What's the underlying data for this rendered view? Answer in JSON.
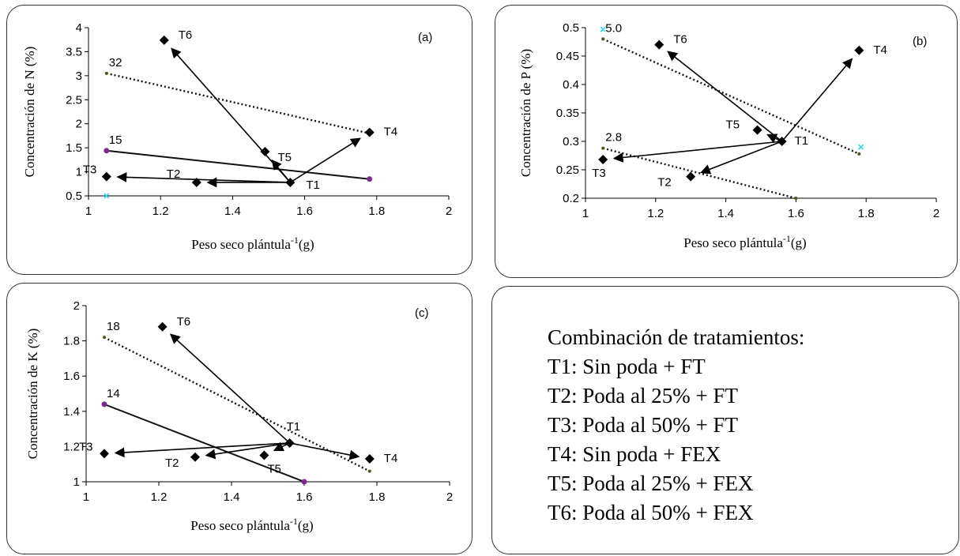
{
  "chart_data": [
    {
      "type": "scatter",
      "panel_tag": "(a)",
      "xlabel": "Peso  seco plántula",
      "xlabel_sup": "-1",
      "xlabel_unit": "(g)",
      "ylabel": "Concentración de N (%)",
      "xlim": [
        1,
        2
      ],
      "ylim": [
        0.5,
        4
      ],
      "xticks": [
        1,
        1.2,
        1.4,
        1.6,
        1.8,
        2
      ],
      "xtick_labels": [
        "1",
        "1.2",
        "1.4",
        "1.6",
        "1.8",
        "2"
      ],
      "yticks": [
        0.5,
        1,
        1.5,
        2,
        2.5,
        3,
        3.5,
        4
      ],
      "ytick_labels": [
        "0.5",
        "1",
        "1.5",
        "2",
        "2.5",
        "3",
        "3.5",
        "4"
      ],
      "points": [
        {
          "label": "T1",
          "x": 1.56,
          "y": 0.78
        },
        {
          "label": "T2",
          "x": 1.3,
          "y": 0.78
        },
        {
          "label": "T3",
          "x": 1.05,
          "y": 0.9
        },
        {
          "label": "T4",
          "x": 1.78,
          "y": 1.82
        },
        {
          "label": "T5",
          "x": 1.49,
          "y": 1.42
        },
        {
          "label": "T6",
          "x": 1.21,
          "y": 3.74
        }
      ],
      "arrows": [
        {
          "from": "T1",
          "to": "T2"
        },
        {
          "from": "T1",
          "to": "T3"
        },
        {
          "from": "T1",
          "to": "T4"
        },
        {
          "from": "T1",
          "to": "T5"
        },
        {
          "from": "T1",
          "to": "T6"
        }
      ],
      "isolines": [
        {
          "label": "32",
          "style": "dotted",
          "x": [
            1.05,
            1.78
          ],
          "y": [
            3.05,
            1.8
          ]
        },
        {
          "label": "15",
          "style": "solid",
          "x": [
            1.05,
            1.78
          ],
          "y": [
            1.44,
            0.85
          ]
        }
      ],
      "extra_markers": [
        {
          "x": 1.05,
          "y": 0.5,
          "color": "#33d6ee"
        }
      ]
    },
    {
      "type": "scatter",
      "panel_tag": "(b)",
      "xlabel": "Peso  seco plántula",
      "xlabel_sup": "-1",
      "xlabel_unit": "(g)",
      "ylabel": "Concentración de P (%)",
      "xlim": [
        1,
        2
      ],
      "ylim": [
        0.2,
        0.5
      ],
      "xticks": [
        1,
        1.2,
        1.4,
        1.6,
        1.8,
        2
      ],
      "xtick_labels": [
        "1",
        "1.2",
        "1.4",
        "1.6",
        "1.8",
        "2"
      ],
      "yticks": [
        0.2,
        0.25,
        0.3,
        0.35,
        0.4,
        0.45,
        0.5
      ],
      "ytick_labels": [
        "0.2",
        "0.25",
        "0.3",
        "0.35",
        "0.4",
        "0.45",
        "0.5"
      ],
      "points": [
        {
          "label": "T1",
          "x": 1.56,
          "y": 0.3
        },
        {
          "label": "T2",
          "x": 1.3,
          "y": 0.238
        },
        {
          "label": "T3",
          "x": 1.05,
          "y": 0.268
        },
        {
          "label": "T4",
          "x": 1.78,
          "y": 0.46
        },
        {
          "label": "T5",
          "x": 1.49,
          "y": 0.32
        },
        {
          "label": "T6",
          "x": 1.21,
          "y": 0.47
        }
      ],
      "arrows": [
        {
          "from": "T1",
          "to": "T2"
        },
        {
          "from": "T1",
          "to": "T3"
        },
        {
          "from": "T1",
          "to": "T4"
        },
        {
          "from": "T1",
          "to": "T5"
        },
        {
          "from": "T1",
          "to": "T6"
        }
      ],
      "isolines": [
        {
          "label": "5.0",
          "style": "dotted",
          "x": [
            1.05,
            1.78
          ],
          "y": [
            0.48,
            0.278
          ]
        },
        {
          "label": "2.8",
          "style": "dotted",
          "x": [
            1.05,
            1.6
          ],
          "y": [
            0.288,
            0.2
          ]
        }
      ],
      "extra_markers": [
        {
          "x": 1.05,
          "y": 0.497,
          "color": "#33d6ee"
        },
        {
          "x": 1.785,
          "y": 0.29,
          "color": "#33d6ee"
        }
      ]
    },
    {
      "type": "scatter",
      "panel_tag": "(c)",
      "xlabel": "Peso  seco plántula",
      "xlabel_sup": "-1",
      "xlabel_unit": "(g)",
      "ylabel": "Concentración de K (%)",
      "xlim": [
        1,
        2
      ],
      "ylim": [
        1,
        2
      ],
      "xticks": [
        1,
        1.2,
        1.4,
        1.6,
        1.8,
        2
      ],
      "xtick_labels": [
        "1",
        "1.2",
        "1.4",
        "1.6",
        "1.8",
        "2"
      ],
      "yticks": [
        1,
        1.2,
        1.4,
        1.6,
        1.8,
        2
      ],
      "ytick_labels": [
        "1",
        "1.2",
        "1.4",
        "1.6",
        "1.8",
        "2"
      ],
      "points": [
        {
          "label": "T1",
          "x": 1.56,
          "y": 1.22
        },
        {
          "label": "T2",
          "x": 1.3,
          "y": 1.14
        },
        {
          "label": "T3",
          "x": 1.05,
          "y": 1.16
        },
        {
          "label": "T4",
          "x": 1.78,
          "y": 1.13
        },
        {
          "label": "T5",
          "x": 1.49,
          "y": 1.15
        },
        {
          "label": "T6",
          "x": 1.21,
          "y": 1.88
        }
      ],
      "arrows": [
        {
          "from": "T1",
          "to": "T2"
        },
        {
          "from": "T1",
          "to": "T3"
        },
        {
          "from": "T1",
          "to": "T4"
        },
        {
          "from": "T1",
          "to": "T5"
        },
        {
          "from": "T1",
          "to": "T6"
        }
      ],
      "isolines": [
        {
          "label": "18",
          "style": "dotted",
          "x": [
            1.05,
            1.78
          ],
          "y": [
            1.82,
            1.06
          ]
        },
        {
          "label": "14",
          "style": "solid",
          "x": [
            1.05,
            1.6
          ],
          "y": [
            1.44,
            1.0
          ]
        }
      ],
      "extra_markers": []
    }
  ],
  "legend": {
    "title": "Combinación de tratamientos:",
    "items": [
      "T1: Sin poda + FT",
      "T2: Poda al 25% + FT",
      "T3: Poda al 50% + FT",
      "T4: Sin poda + FEX",
      "T5: Poda al 25% + FEX",
      "T6: Poda al 50% + FEX"
    ]
  },
  "colors": {
    "point": "#000000",
    "isoline_marker": "#7b2d8e",
    "dotted_marker": "#4a5a1a",
    "cyan": "#33d6ee"
  }
}
